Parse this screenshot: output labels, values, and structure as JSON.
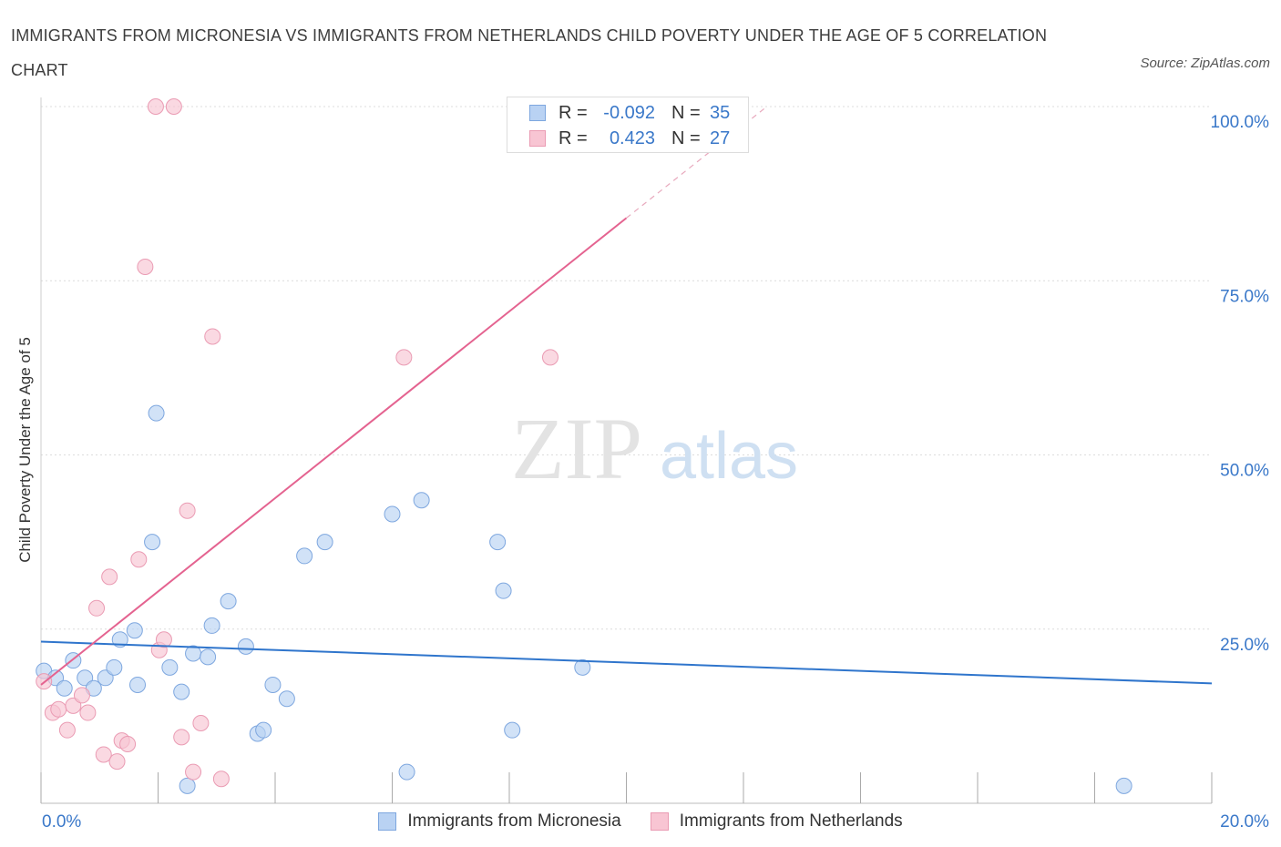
{
  "title": "IMMIGRANTS FROM MICRONESIA VS IMMIGRANTS FROM NETHERLANDS CHILD POVERTY UNDER THE AGE OF 5 CORRELATION CHART",
  "source": "Source: ZipAtlas.com",
  "watermark": {
    "zip": "ZIP",
    "atlas": "atlas"
  },
  "legend": {
    "rows": [
      {
        "r_label": "R =",
        "r_value": "-0.092",
        "n_label": "N =",
        "n_value": "35"
      },
      {
        "r_label": "R =",
        "r_value": "0.423",
        "n_label": "N =",
        "n_value": "27"
      }
    ]
  },
  "bottom_legend": {
    "micronesia": "Immigrants from Micronesia",
    "netherlands": "Immigrants from Netherlands"
  },
  "colors": {
    "micronesia_fill": "#b9d2f3",
    "micronesia_stroke": "#7ea7df",
    "micronesia_line": "#2f75cc",
    "netherlands_fill": "#f8c5d3",
    "netherlands_stroke": "#ea9bb3",
    "netherlands_line": "#e46390",
    "axis_label": "#3a78c9"
  },
  "chart_data": {
    "type": "scatter",
    "title": "IMMIGRANTS FROM MICRONESIA VS IMMIGRANTS FROM NETHERLANDS CHILD POVERTY UNDER THE AGE OF 5 CORRELATION CHART",
    "xlabel": "",
    "ylabel": "Child Poverty Under the Age of 5",
    "xlim": [
      0,
      20
    ],
    "ylim": [
      0,
      100
    ],
    "x_tick_labels": [
      "0.0%",
      "20.0%"
    ],
    "y_ticks": [
      25,
      50,
      75,
      100
    ],
    "y_tick_labels": [
      "25.0%",
      "50.0%",
      "75.0%",
      "100.0%"
    ],
    "grid": true,
    "legend_position": "top-center",
    "series": [
      {
        "name": "Immigrants from Micronesia",
        "r": -0.092,
        "n": 35,
        "trend": {
          "x": [
            0,
            20
          ],
          "y": [
            23.2,
            17.2
          ]
        },
        "points": [
          {
            "x": 0.05,
            "y": 19.0
          },
          {
            "x": 0.25,
            "y": 18.0
          },
          {
            "x": 0.4,
            "y": 16.5
          },
          {
            "x": 0.55,
            "y": 20.5
          },
          {
            "x": 0.75,
            "y": 18.0
          },
          {
            "x": 0.9,
            "y": 16.5
          },
          {
            "x": 1.1,
            "y": 18.0
          },
          {
            "x": 1.25,
            "y": 19.5
          },
          {
            "x": 1.35,
            "y": 23.5
          },
          {
            "x": 1.6,
            "y": 24.8
          },
          {
            "x": 1.65,
            "y": 17.0
          },
          {
            "x": 1.9,
            "y": 37.5
          },
          {
            "x": 1.97,
            "y": 56.0
          },
          {
            "x": 2.2,
            "y": 19.5
          },
          {
            "x": 2.4,
            "y": 16.0
          },
          {
            "x": 2.5,
            "y": 2.5
          },
          {
            "x": 2.6,
            "y": 21.5
          },
          {
            "x": 2.85,
            "y": 21.0
          },
          {
            "x": 2.92,
            "y": 25.5
          },
          {
            "x": 3.2,
            "y": 29.0
          },
          {
            "x": 3.5,
            "y": 22.5
          },
          {
            "x": 3.7,
            "y": 10.0
          },
          {
            "x": 3.8,
            "y": 10.5
          },
          {
            "x": 3.96,
            "y": 17.0
          },
          {
            "x": 4.2,
            "y": 15.0
          },
          {
            "x": 4.5,
            "y": 35.5
          },
          {
            "x": 4.85,
            "y": 37.5
          },
          {
            "x": 6.0,
            "y": 41.5
          },
          {
            "x": 6.25,
            "y": 4.5
          },
          {
            "x": 6.5,
            "y": 43.5
          },
          {
            "x": 7.8,
            "y": 37.5
          },
          {
            "x": 7.9,
            "y": 30.5
          },
          {
            "x": 8.05,
            "y": 10.5
          },
          {
            "x": 9.25,
            "y": 19.5
          },
          {
            "x": 18.5,
            "y": 2.5
          }
        ]
      },
      {
        "name": "Immigrants from Netherlands",
        "r": 0.423,
        "n": 27,
        "trend": {
          "x": [
            0,
            10
          ],
          "y": [
            17.0,
            84.0
          ]
        },
        "trend_dashed": {
          "x": [
            10,
            12.4
          ],
          "y": [
            84.0,
            100.0
          ]
        },
        "points": [
          {
            "x": 0.05,
            "y": 17.5
          },
          {
            "x": 0.2,
            "y": 13.0
          },
          {
            "x": 0.3,
            "y": 13.5
          },
          {
            "x": 0.45,
            "y": 10.5
          },
          {
            "x": 0.55,
            "y": 14.0
          },
          {
            "x": 0.7,
            "y": 15.5
          },
          {
            "x": 0.8,
            "y": 13.0
          },
          {
            "x": 0.95,
            "y": 28.0
          },
          {
            "x": 1.07,
            "y": 7.0
          },
          {
            "x": 1.17,
            "y": 32.5
          },
          {
            "x": 1.3,
            "y": 6.0
          },
          {
            "x": 1.38,
            "y": 9.0
          },
          {
            "x": 1.48,
            "y": 8.5
          },
          {
            "x": 1.67,
            "y": 35.0
          },
          {
            "x": 1.78,
            "y": 77.0
          },
          {
            "x": 1.96,
            "y": 100.0
          },
          {
            "x": 2.27,
            "y": 100.0
          },
          {
            "x": 2.02,
            "y": 22.0
          },
          {
            "x": 2.1,
            "y": 23.5
          },
          {
            "x": 2.4,
            "y": 9.5
          },
          {
            "x": 2.5,
            "y": 42.0
          },
          {
            "x": 2.6,
            "y": 4.5
          },
          {
            "x": 2.73,
            "y": 11.5
          },
          {
            "x": 2.93,
            "y": 67.0
          },
          {
            "x": 3.08,
            "y": 3.5
          },
          {
            "x": 6.2,
            "y": 64.0
          },
          {
            "x": 8.7,
            "y": 64.0
          }
        ]
      }
    ]
  }
}
